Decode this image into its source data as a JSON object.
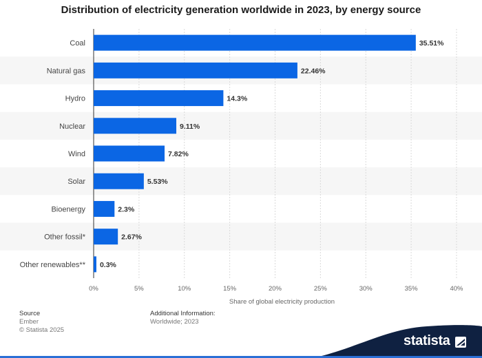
{
  "title": "Distribution of electricity generation worldwide in 2023, by energy source",
  "chart_data": {
    "type": "bar",
    "orientation": "horizontal",
    "title": "Distribution of electricity generation worldwide in 2023, by energy source",
    "categories": [
      "Coal",
      "Natural gas",
      "Hydro",
      "Nuclear",
      "Wind",
      "Solar",
      "Bioenergy",
      "Other fossil*",
      "Other renewables**"
    ],
    "values": [
      35.51,
      22.46,
      14.3,
      9.11,
      7.82,
      5.53,
      2.3,
      2.67,
      0.3
    ],
    "value_labels": [
      "35.51%",
      "22.46%",
      "14.3%",
      "9.11%",
      "7.82%",
      "5.53%",
      "2.3%",
      "2.67%",
      "0.3%"
    ],
    "xlabel": "Share of global electricity production",
    "ylabel": "",
    "xlim": [
      0,
      40
    ],
    "xticks": [
      0,
      5,
      10,
      15,
      20,
      25,
      30,
      35,
      40
    ],
    "xtick_labels": [
      "0%",
      "5%",
      "10%",
      "15%",
      "20%",
      "25%",
      "30%",
      "35%",
      "40%"
    ],
    "grid": true,
    "bar_color": "#0b66e4"
  },
  "footer": {
    "source_label": "Source",
    "source_value": "Ember",
    "copyright": "© Statista 2025",
    "info_label": "Additional Information:",
    "info_value": "Worldwide; 2023"
  },
  "brand": {
    "name": "statista",
    "wave_color": "#0f2141",
    "accent_color": "#2a6fd6"
  }
}
